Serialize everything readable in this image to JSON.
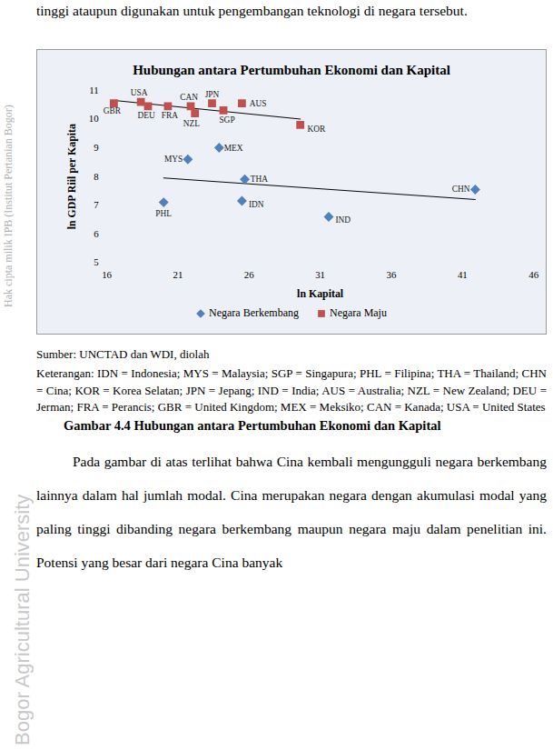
{
  "page": {
    "top_text": "tinggi ataupun digunakan untuk pengembangan teknologi di negara tersebut.",
    "source": "Sumber: UNCTAD dan WDI, diolah",
    "note": "Keterangan: IDN = Indonesia; MYS = Malaysia; SGP = Singapura; PHL = Filipina; THA = Thailand; CHN = Cina; KOR = Korea Selatan; JPN = Jepang; IND = India; AUS = Australia; NZL = New Zealand; DEU = Jerman; FRA = Perancis; GBR = United Kingdom; MEX = Meksiko; CAN = Kanada; USA = United States",
    "caption": "Gambar 4.4 Hubungan antara Pertumbuhan Ekonomi dan Kapital",
    "paragraph": "Pada gambar di atas terlihat bahwa Cina kembali mengungguli negara berkembang lainnya dalam hal jumlah modal. Cina merupakan negara dengan akumulasi modal yang paling tinggi dibanding negara berkembang maupun negara maju dalam penelitian ini. Potensi yang besar dari negara Cina banyak",
    "watermarks": [
      "Hak cipta milik IPB (Institut Pertanian Bogor)",
      "Bogor Agricultural University"
    ]
  },
  "chart_data": {
    "type": "scatter",
    "title": "Hubungan antara Pertumbuhan Ekonomi dan Kapital",
    "x_label": "ln Kapital",
    "y_label": "ln GDP Riil per Kapita",
    "xlim": [
      16,
      46
    ],
    "xticks": [
      16,
      21,
      26,
      31,
      36,
      41,
      46
    ],
    "ylim": [
      5,
      11
    ],
    "yticks": [
      5,
      6,
      7,
      8,
      9,
      10,
      11
    ],
    "grid": false,
    "legend": "bottom",
    "series": [
      {
        "name": "Negara Berkembang",
        "color": "#4f81bd",
        "marker": "diamond",
        "labels": [
          "PHL",
          "MYS",
          "MEX",
          "THA",
          "IDN",
          "IND",
          "CHN"
        ],
        "x": [
          20.0,
          21.7,
          23.9,
          25.7,
          25.5,
          31.6,
          41.9
        ],
        "values": [
          7.1,
          8.6,
          9.0,
          7.9,
          7.15,
          6.6,
          7.55
        ],
        "trend": {
          "x": [
            20.0,
            41.9
          ],
          "values": [
            7.95,
            7.2
          ]
        }
      },
      {
        "name": "Negara Maju",
        "color": "#c0504d",
        "marker": "square",
        "labels": [
          "GBR",
          "USA",
          "DEU",
          "FRA",
          "CAN",
          "NZL",
          "JPN",
          "SGP",
          "AUS",
          "KOR"
        ],
        "x": [
          16.5,
          18.4,
          18.9,
          20.3,
          21.9,
          22.2,
          23.4,
          24.2,
          25.5,
          29.6
        ],
        "values": [
          10.55,
          10.6,
          10.45,
          10.45,
          10.45,
          10.2,
          10.55,
          10.3,
          10.55,
          9.8
        ],
        "trend": {
          "x": [
            16.5,
            29.6
          ],
          "values": [
            10.65,
            10.0
          ]
        }
      }
    ]
  }
}
